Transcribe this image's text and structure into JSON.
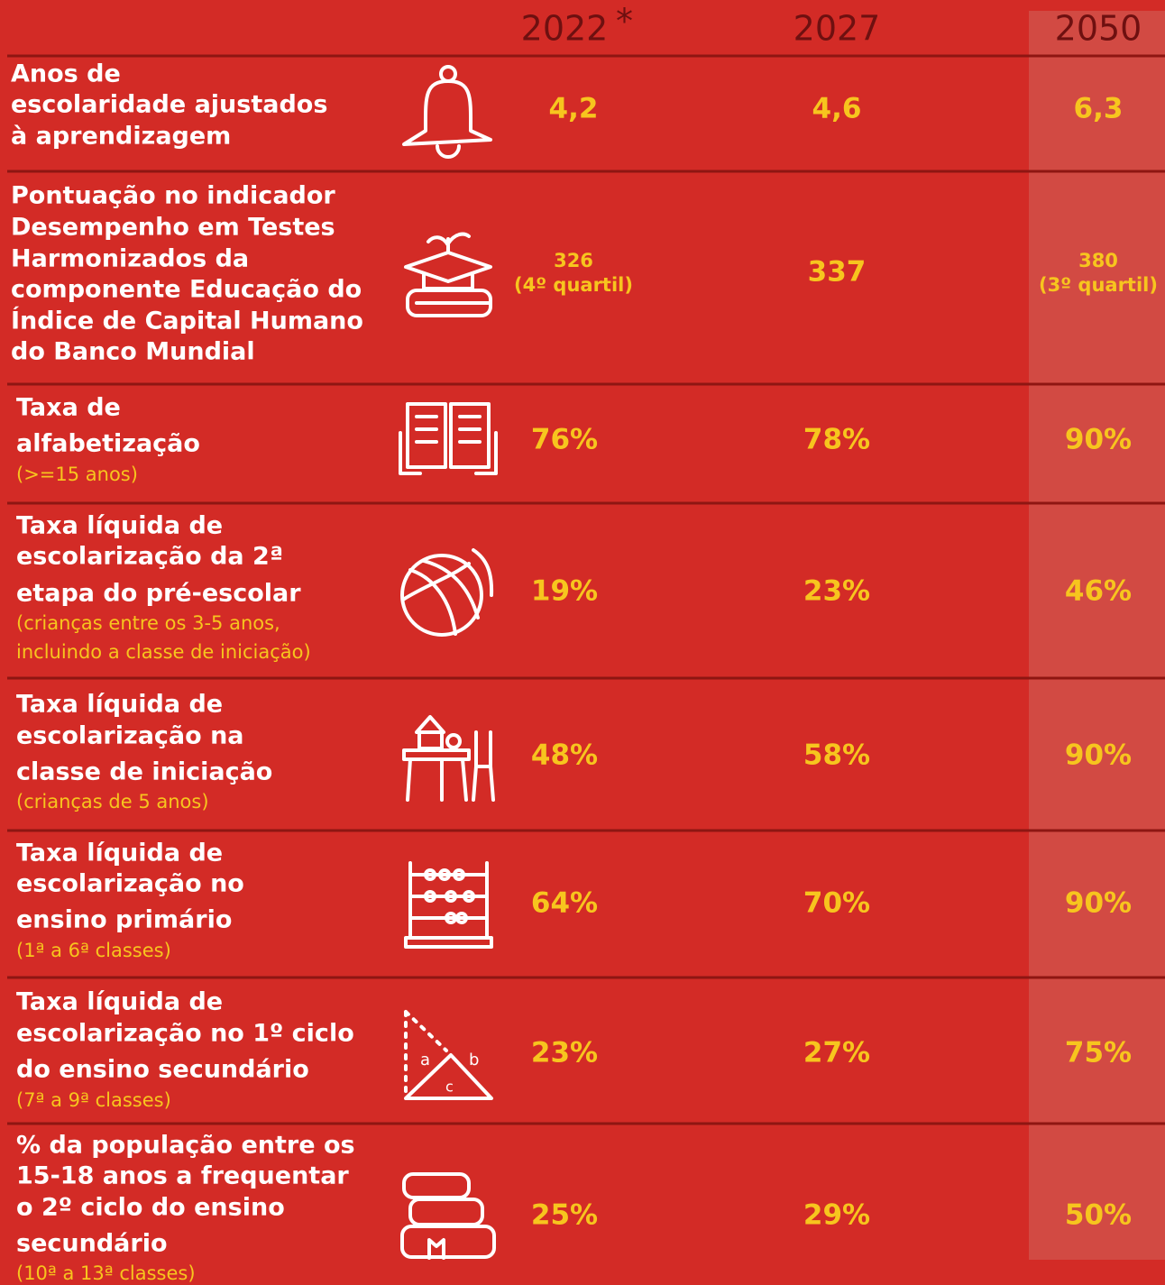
{
  "header": {
    "years": [
      "2022",
      "2027",
      "2050"
    ],
    "note_mark": "*"
  },
  "rows": [
    {
      "label": [
        "Anos de",
        "escolaridade ajustados",
        "à aprendizagem"
      ],
      "values": [
        [
          "4,2"
        ],
        [
          "4,6"
        ],
        [
          "6,3"
        ]
      ]
    },
    {
      "label": [
        "Pontuação no indicador",
        "Desempenho em Testes",
        "Harmonizados da",
        "componente Educação do",
        "Índice de Capital Humano",
        "do Banco Mundial"
      ],
      "values": [
        [
          "326",
          "(4º quartil)"
        ],
        [
          "337"
        ],
        [
          "380",
          "(3º quartil)"
        ]
      ]
    },
    {
      "label": [
        "Taxa de",
        "alfabetização"
      ],
      "sub": [
        "(>=15 anos)"
      ],
      "values": [
        [
          "76%"
        ],
        [
          "78%"
        ],
        [
          "90%"
        ]
      ]
    },
    {
      "label": [
        "Taxa líquida de",
        "escolarização da 2ª",
        "etapa do pré-escolar"
      ],
      "sub": [
        "(crianças entre os 3-5 anos,",
        "incluindo a classe de iniciação)"
      ],
      "values": [
        [
          "19%"
        ],
        [
          "23%"
        ],
        [
          "46%"
        ]
      ]
    },
    {
      "label": [
        "Taxa líquida de",
        "escolarização na",
        "classe de iniciação"
      ],
      "sub": [
        "(crianças de 5 anos)"
      ],
      "values": [
        [
          "48%"
        ],
        [
          "58%"
        ],
        [
          "90%"
        ]
      ]
    },
    {
      "label": [
        "Taxa líquida de",
        "escolarização no",
        "ensino primário"
      ],
      "sub": [
        "(1ª a 6ª classes)"
      ],
      "values": [
        [
          "64%"
        ],
        [
          "70%"
        ],
        [
          "90%"
        ]
      ]
    },
    {
      "label": [
        "Taxa líquida de",
        "escolarização no 1º ciclo",
        "do ensino secundário"
      ],
      "sub": [
        "(7ª a 9ª classes)"
      ],
      "values": [
        [
          "23%"
        ],
        [
          "27%"
        ],
        [
          "75%"
        ]
      ]
    },
    {
      "label": [
        "% da população entre os",
        "15-18 anos a frequentar",
        "o 2º ciclo do ensino",
        "secundário"
      ],
      "sub": [
        "(10ª a 13ª classes)"
      ],
      "values": [
        [
          "25%"
        ],
        [
          "29%"
        ],
        [
          "50%"
        ]
      ]
    }
  ]
}
